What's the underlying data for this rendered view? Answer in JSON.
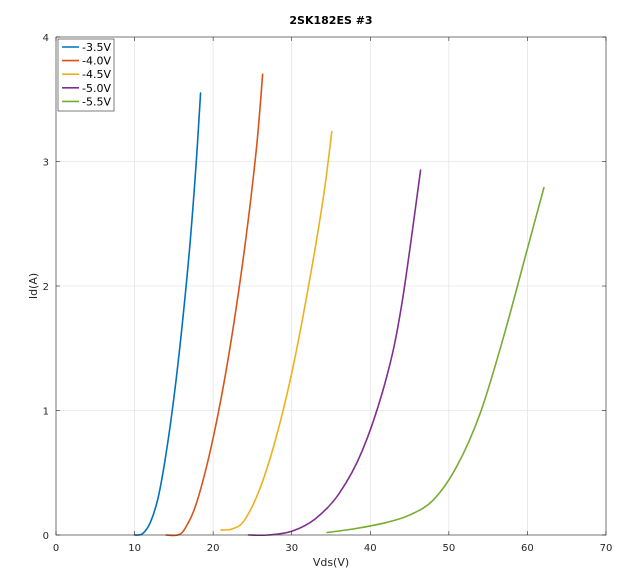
{
  "chart_data": {
    "type": "line",
    "title": "2SK182ES #3",
    "xlabel": "Vds(V)",
    "ylabel": "Id(A)",
    "xlim": [
      0,
      70
    ],
    "ylim": [
      0,
      4
    ],
    "xticks": [
      "0",
      "10",
      "20",
      "30",
      "40",
      "50",
      "60",
      "70"
    ],
    "yticks": [
      "0",
      "1",
      "2",
      "3",
      "4"
    ],
    "grid": true,
    "legend_position": "top-left",
    "series": [
      {
        "name": "-3.5V",
        "color": "#0072bd",
        "points": [
          [
            10.0,
            0.0
          ],
          [
            11.0,
            0.01
          ],
          [
            12.0,
            0.1
          ],
          [
            13.0,
            0.3
          ],
          [
            14.0,
            0.65
          ],
          [
            15.0,
            1.1
          ],
          [
            16.0,
            1.65
          ],
          [
            17.0,
            2.3
          ],
          [
            17.8,
            2.95
          ],
          [
            18.4,
            3.55
          ]
        ]
      },
      {
        "name": "-4.0V",
        "color": "#d95319",
        "points": [
          [
            14.0,
            0.0
          ],
          [
            15.5,
            0.0
          ],
          [
            16.5,
            0.06
          ],
          [
            18.0,
            0.28
          ],
          [
            20.0,
            0.78
          ],
          [
            22.0,
            1.45
          ],
          [
            24.0,
            2.3
          ],
          [
            25.5,
            3.1
          ],
          [
            26.3,
            3.7
          ]
        ]
      },
      {
        "name": "-4.5V",
        "color": "#edb120",
        "points": [
          [
            21.0,
            0.04
          ],
          [
            22.5,
            0.05
          ],
          [
            24.0,
            0.12
          ],
          [
            26.0,
            0.38
          ],
          [
            28.0,
            0.78
          ],
          [
            30.0,
            1.3
          ],
          [
            32.0,
            1.95
          ],
          [
            34.0,
            2.7
          ],
          [
            35.1,
            3.24
          ]
        ]
      },
      {
        "name": "-5.0V",
        "color": "#7e2f8e",
        "points": [
          [
            24.5,
            0.0
          ],
          [
            27.0,
            0.0
          ],
          [
            30.0,
            0.03
          ],
          [
            33.0,
            0.13
          ],
          [
            36.0,
            0.33
          ],
          [
            39.0,
            0.68
          ],
          [
            42.0,
            1.25
          ],
          [
            44.0,
            1.85
          ],
          [
            46.4,
            2.93
          ]
        ]
      },
      {
        "name": "-5.5V",
        "color": "#77ac30",
        "points": [
          [
            34.5,
            0.02
          ],
          [
            38.0,
            0.05
          ],
          [
            42.0,
            0.1
          ],
          [
            45.0,
            0.16
          ],
          [
            48.0,
            0.28
          ],
          [
            51.0,
            0.55
          ],
          [
            54.0,
            0.98
          ],
          [
            57.0,
            1.6
          ],
          [
            60.0,
            2.3
          ],
          [
            62.1,
            2.79
          ]
        ]
      }
    ]
  }
}
